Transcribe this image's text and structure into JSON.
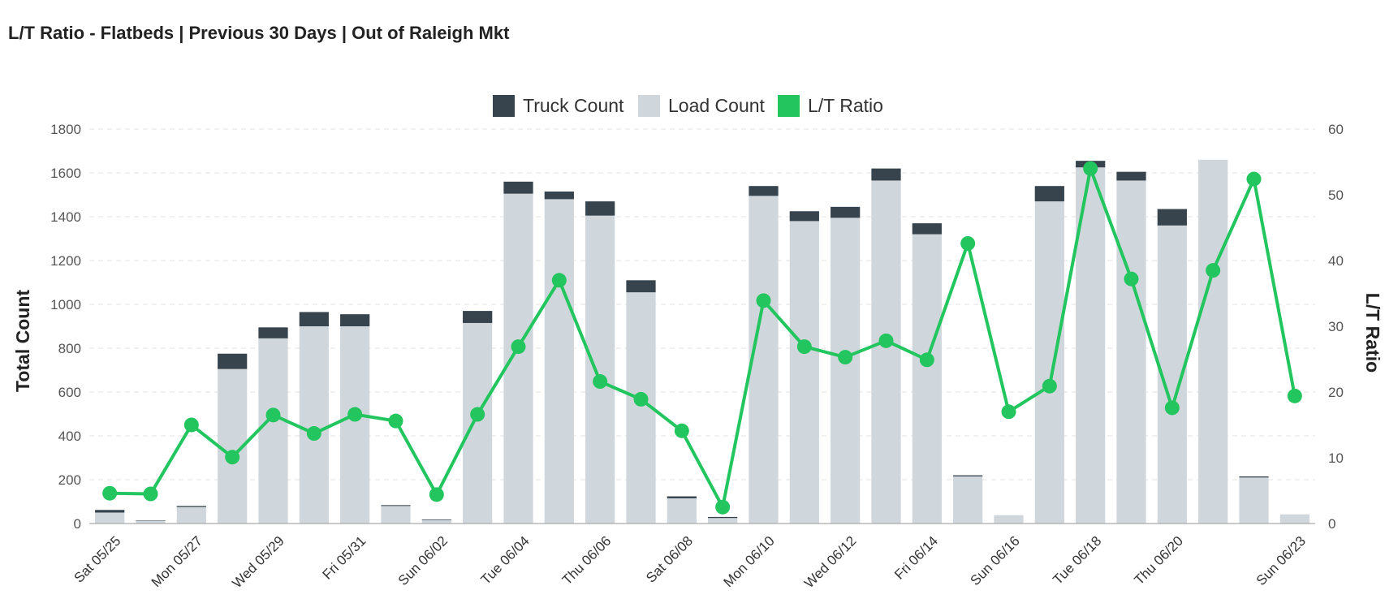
{
  "chart_data": {
    "type": "bar",
    "title": "L/T Ratio - Flatbeds | Previous 30 Days | Out of Raleigh Mkt",
    "ylabel_left": "Total Count",
    "ylabel_right": "L/T Ratio",
    "ylim_left": [
      0,
      1800
    ],
    "ylim_right": [
      0,
      60
    ],
    "yticks_left": [
      "0",
      "200",
      "400",
      "600",
      "800",
      "1000",
      "1200",
      "1400",
      "1600",
      "1800"
    ],
    "yticks_right": [
      "0",
      "10",
      "20",
      "30",
      "40",
      "50",
      "60"
    ],
    "grid": true,
    "legend_position": "top-center",
    "x_tick_labels": [
      "Sat 05/25",
      "Mon 05/27",
      "Wed 05/29",
      "Fri 05/31",
      "Sun 06/02",
      "Tue 06/04",
      "Thu 06/06",
      "Sat 06/08",
      "Mon 06/10",
      "Wed 06/12",
      "Fri 06/14",
      "Sun 06/16",
      "Tue 06/18",
      "Thu 06/20",
      "Sun 06/23"
    ],
    "x_tick_indices": [
      0,
      2,
      4,
      6,
      8,
      10,
      12,
      14,
      16,
      18,
      20,
      22,
      24,
      26,
      29
    ],
    "num_categories": 30,
    "series": [
      {
        "name": "Truck Count",
        "kind": "bar-stacked",
        "color": "#37444e",
        "values": [
          12,
          2,
          5,
          70,
          50,
          65,
          55,
          4,
          3,
          55,
          55,
          35,
          65,
          55,
          9,
          5,
          45,
          45,
          50,
          55,
          50,
          5,
          0,
          70,
          30,
          40,
          75,
          0,
          5,
          0
        ]
      },
      {
        "name": "Load Count",
        "kind": "bar",
        "color": "#d0d7dc",
        "values": [
          50,
          12,
          75,
          705,
          845,
          900,
          900,
          80,
          15,
          915,
          1505,
          1480,
          1405,
          1055,
          115,
          25,
          1495,
          1380,
          1395,
          1565,
          1320,
          215,
          38,
          1470,
          1625,
          1565,
          1360,
          1660,
          210,
          42
        ]
      },
      {
        "name": "L/T Ratio",
        "kind": "line",
        "color": "#22c55e",
        "values": [
          4.6,
          4.5,
          15.0,
          10.1,
          16.5,
          13.7,
          16.6,
          15.6,
          4.4,
          16.6,
          26.9,
          37.0,
          21.6,
          18.9,
          14.1,
          2.5,
          33.9,
          26.9,
          25.3,
          27.8,
          24.9,
          42.6,
          17.0,
          20.9,
          54.0,
          37.2,
          17.6,
          38.5,
          52.4,
          19.4
        ]
      }
    ]
  }
}
